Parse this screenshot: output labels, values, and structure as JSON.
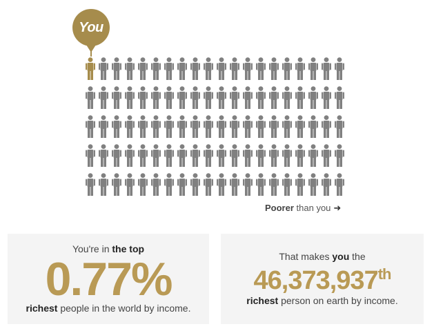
{
  "marker": {
    "label": "You"
  },
  "people_grid": {
    "rows": 5,
    "columns": 20,
    "highlighted_index": 0,
    "colors": {
      "highlight": "#a68c4c",
      "default": "#808080"
    }
  },
  "poorer": {
    "bold": "Poorer",
    "rest": "than you",
    "arrow_icon": "arrow-right-icon"
  },
  "box_percent": {
    "pre": "You're in",
    "pre_bold": "the top",
    "value": "0.77%",
    "post_bold": "richest",
    "post": "people in the world by income."
  },
  "box_rank": {
    "pre": "That makes",
    "pre_bold": "you",
    "pre_end": "the",
    "value": "46,373,937",
    "suffix": "th",
    "post_bold": "richest",
    "post": "person on earth by income."
  },
  "accent_color": "#b99a55"
}
